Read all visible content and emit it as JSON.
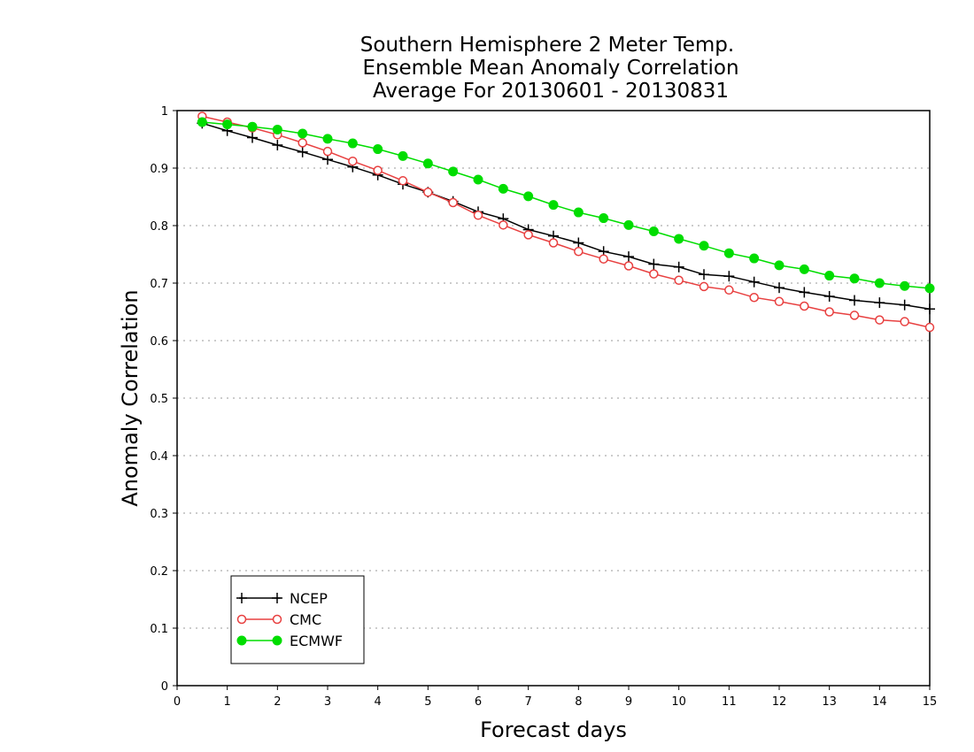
{
  "chart_data": {
    "type": "line",
    "title": [
      "Southern Hemisphere 2 Meter Temp.",
      "Ensemble Mean Anomaly Correlation",
      "Average For 20130601 - 20130831"
    ],
    "xlabel": "Forecast days",
    "ylabel": "Anomaly Correlation",
    "xlim": [
      0,
      15
    ],
    "ylim": [
      0,
      1
    ],
    "xticks": [
      "0",
      "1",
      "2",
      "3",
      "4",
      "5",
      "6",
      "7",
      "8",
      "9",
      "10",
      "11",
      "12",
      "13",
      "14",
      "15"
    ],
    "yticks": [
      "0",
      "0.1",
      "0.2",
      "0.3",
      "0.4",
      "0.5",
      "0.6",
      "0.7",
      "0.8",
      "0.9",
      "1"
    ],
    "grid": "horizontal dotted",
    "legend_position": "bottom-left",
    "x": [
      0.5,
      1,
      1.5,
      2,
      2.5,
      3,
      3.5,
      4,
      4.5,
      5,
      5.5,
      6,
      6.5,
      7,
      7.5,
      8,
      8.5,
      9,
      9.5,
      10,
      10.5,
      11,
      11.5,
      12,
      12.5,
      13,
      13.5,
      14,
      14.5,
      15
    ],
    "series": [
      {
        "name": "NCEP",
        "color": "#000000",
        "marker": "plus",
        "values": [
          0.978,
          0.965,
          0.953,
          0.94,
          0.928,
          0.915,
          0.902,
          0.888,
          0.872,
          0.858,
          0.842,
          0.824,
          0.812,
          0.793,
          0.782,
          0.77,
          0.755,
          0.746,
          0.733,
          0.728,
          0.715,
          0.712,
          0.702,
          0.692,
          0.684,
          0.677,
          0.67,
          0.666,
          0.662,
          0.655
        ]
      },
      {
        "name": "CMC",
        "color": "#e84040",
        "marker": "open-circle",
        "values": [
          0.99,
          0.98,
          0.97,
          0.958,
          0.944,
          0.929,
          0.912,
          0.896,
          0.878,
          0.858,
          0.84,
          0.818,
          0.801,
          0.784,
          0.77,
          0.755,
          0.742,
          0.73,
          0.716,
          0.705,
          0.694,
          0.688,
          0.675,
          0.668,
          0.66,
          0.65,
          0.644,
          0.636,
          0.633,
          0.623
        ]
      },
      {
        "name": "ECMWF",
        "color": "#00dd00",
        "marker": "filled-circle",
        "values": [
          0.98,
          0.976,
          0.972,
          0.967,
          0.96,
          0.951,
          0.943,
          0.933,
          0.921,
          0.908,
          0.894,
          0.88,
          0.864,
          0.851,
          0.836,
          0.823,
          0.813,
          0.801,
          0.79,
          0.777,
          0.765,
          0.752,
          0.743,
          0.731,
          0.724,
          0.713,
          0.708,
          0.7,
          0.695,
          0.691
        ]
      }
    ]
  }
}
